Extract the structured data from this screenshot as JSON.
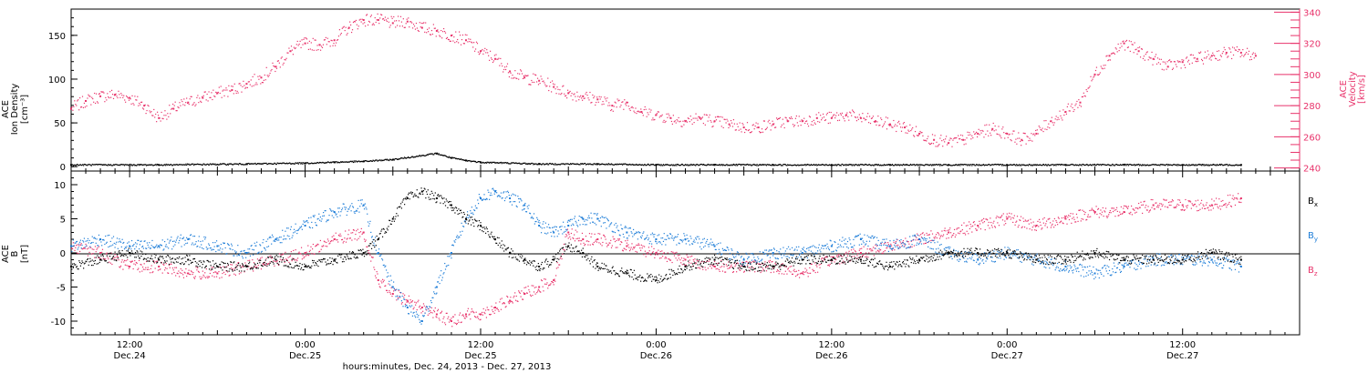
{
  "colors": {
    "black": "#000000",
    "pink": "#e8336b",
    "blue": "#1f7ed8",
    "axis": "#000000"
  },
  "xaxis": {
    "title": "hours:minutes, Dec. 24, 2013 - Dec. 27, 2013",
    "range_hours": [
      8.0,
      92.0
    ],
    "ticks": [
      {
        "hour": 12,
        "time": "12:00",
        "date": "Dec.24"
      },
      {
        "hour": 24,
        "time": "0:00",
        "date": "Dec.25"
      },
      {
        "hour": 36,
        "time": "12:00",
        "date": "Dec.25"
      },
      {
        "hour": 48,
        "time": "0:00",
        "date": "Dec.26"
      },
      {
        "hour": 60,
        "time": "12:00",
        "date": "Dec.26"
      },
      {
        "hour": 72,
        "time": "0:00",
        "date": "Dec.27"
      },
      {
        "hour": 84,
        "time": "12:00",
        "date": "Dec.27"
      }
    ]
  },
  "panel_top": {
    "left_label": [
      "ACE",
      "Ion Density",
      "[cm⁻³]"
    ],
    "right_label": [
      "ACE",
      "Velocity",
      "[km/s]"
    ],
    "left_ticks": [
      "0",
      "50",
      "100",
      "150"
    ],
    "right_ticks": [
      "240",
      "260",
      "280",
      "300",
      "320",
      "340"
    ]
  },
  "panel_bottom": {
    "left_label": [
      "ACE",
      "B",
      "[nT]"
    ],
    "left_ticks": [
      "-10",
      "-5",
      "0",
      "5",
      "10"
    ],
    "legend": [
      {
        "base": "B",
        "sub": "x",
        "color": "#000000"
      },
      {
        "base": "B",
        "sub": "y",
        "color": "#1f7ed8"
      },
      {
        "base": "B",
        "sub": "z",
        "color": "#e8336b"
      }
    ]
  },
  "chart_data": [
    {
      "type": "scatter",
      "title": "",
      "xlabel": "hours:minutes, Dec. 24, 2013 - Dec. 27, 2013",
      "x_range_hours_from_dec24_0000": [
        8,
        92
      ],
      "ylim_left": [
        -5,
        180
      ],
      "ylim_right": [
        238,
        342
      ],
      "series": [
        {
          "name": "Ion Density",
          "axis": "left",
          "color": "#000000",
          "x_hours": [
            8,
            14,
            20,
            24,
            26,
            28,
            30,
            33,
            34,
            35,
            36,
            40,
            44,
            48,
            52,
            56,
            60,
            64,
            68,
            72,
            76,
            80,
            84,
            88
          ],
          "y": [
            2,
            2,
            3,
            4,
            5,
            6,
            8,
            15,
            10,
            7,
            5,
            3,
            3,
            2,
            2,
            2,
            2,
            2,
            2,
            2,
            2,
            2,
            2,
            2
          ]
        },
        {
          "name": "Velocity",
          "axis": "right",
          "color": "#e8336b",
          "x_hours": [
            8,
            9,
            10,
            11,
            12,
            13,
            14,
            15,
            16,
            17,
            18,
            19,
            20,
            21,
            22,
            23,
            24,
            25,
            26,
            27,
            28,
            29,
            30,
            31,
            32,
            33,
            34,
            35,
            36,
            37,
            38,
            39,
            40,
            41,
            42,
            43,
            44,
            45,
            46,
            47,
            48,
            49,
            50,
            51,
            52,
            53,
            54,
            55,
            56,
            57,
            58,
            59,
            60,
            61,
            62,
            63,
            64,
            65,
            66,
            67,
            68,
            69,
            70,
            71,
            72,
            73,
            74,
            75,
            76,
            77,
            78,
            79,
            80,
            81,
            82,
            83,
            84,
            85,
            86,
            87,
            88,
            89
          ],
          "y": [
            278,
            283,
            286,
            287,
            285,
            280,
            272,
            278,
            282,
            285,
            288,
            290,
            294,
            298,
            305,
            315,
            320,
            319,
            322,
            330,
            335,
            335,
            333,
            334,
            330,
            328,
            325,
            322,
            315,
            310,
            302,
            298,
            296,
            292,
            288,
            286,
            284,
            280,
            282,
            276,
            274,
            272,
            270,
            272,
            270,
            268,
            266,
            266,
            268,
            270,
            270,
            272,
            272,
            274,
            272,
            270,
            268,
            266,
            262,
            258,
            256,
            258,
            262,
            265,
            262,
            258,
            262,
            270,
            276,
            282,
            300,
            312,
            320,
            315,
            310,
            305,
            308,
            310,
            312,
            314,
            314,
            312
          ]
        }
      ]
    },
    {
      "type": "scatter",
      "title": "",
      "xlabel": "hours:minutes, Dec. 24, 2013 - Dec. 27, 2013",
      "x_range_hours_from_dec24_0000": [
        8,
        92
      ],
      "ylim": [
        -12,
        12
      ],
      "series": [
        {
          "name": "Bx",
          "color": "#000000",
          "x_hours": [
            8,
            10,
            12,
            14,
            16,
            18,
            20,
            22,
            24,
            26,
            28,
            29,
            30,
            31,
            32,
            33,
            34,
            35,
            36,
            37,
            38,
            39,
            40,
            41,
            42,
            43,
            44,
            46,
            48,
            50,
            52,
            54,
            56,
            58,
            60,
            62,
            64,
            66,
            68,
            70,
            72,
            74,
            76,
            78,
            80,
            82,
            84,
            86,
            88
          ],
          "y": [
            -2,
            -1,
            0,
            -1,
            -1,
            -2,
            -2,
            -1,
            -2,
            -1,
            0,
            2,
            5,
            8,
            9,
            8,
            7,
            5,
            4,
            2,
            0,
            -1,
            -2,
            -1,
            1,
            0,
            -2,
            -3,
            -4,
            -2,
            -1,
            -2,
            -2,
            -1,
            -1,
            -1,
            -2,
            -1,
            0,
            0,
            0,
            -1,
            -1,
            0,
            -1,
            -1,
            -1,
            0,
            -1
          ]
        },
        {
          "name": "By",
          "color": "#1f7ed8",
          "x_hours": [
            8,
            10,
            12,
            14,
            16,
            18,
            20,
            22,
            24,
            26,
            28,
            29,
            30,
            31,
            32,
            33,
            34,
            35,
            36,
            37,
            38,
            39,
            40,
            41,
            42,
            43,
            44,
            46,
            48,
            50,
            52,
            54,
            56,
            58,
            60,
            62,
            64,
            66,
            68,
            70,
            72,
            74,
            76,
            78,
            80,
            82,
            84,
            86,
            88
          ],
          "y": [
            1,
            2,
            1,
            1,
            2,
            1,
            0,
            2,
            4,
            6,
            7,
            0,
            -5,
            -8,
            -10,
            -5,
            0,
            5,
            8,
            9,
            8,
            7,
            4,
            3,
            4,
            5,
            5,
            3,
            2,
            2,
            1,
            -1,
            0,
            0,
            1,
            2,
            1,
            2,
            0,
            -1,
            0,
            -1,
            -2,
            -3,
            -2,
            -1,
            -1,
            -1,
            -2
          ]
        },
        {
          "name": "Bz",
          "color": "#e8336b",
          "x_hours": [
            8,
            10,
            12,
            14,
            16,
            18,
            20,
            22,
            24,
            26,
            28,
            29,
            30,
            31,
            32,
            33,
            34,
            35,
            36,
            37,
            38,
            39,
            40,
            41,
            42,
            43,
            44,
            46,
            48,
            50,
            52,
            54,
            56,
            58,
            60,
            62,
            64,
            66,
            68,
            70,
            72,
            74,
            76,
            78,
            80,
            82,
            84,
            86,
            88
          ],
          "y": [
            1,
            0,
            -2,
            -2,
            -3,
            -3,
            -2,
            -1,
            0,
            2,
            3,
            -4,
            -6,
            -7,
            -8,
            -9,
            -10,
            -9,
            -9,
            -8,
            -7,
            -6,
            -5,
            -4,
            3,
            2,
            2,
            1,
            0,
            -1,
            -2,
            -2,
            -2,
            -3,
            -1,
            0,
            1,
            2,
            3,
            4,
            5,
            4,
            5,
            6,
            6,
            7,
            7,
            7,
            8
          ]
        }
      ]
    }
  ]
}
